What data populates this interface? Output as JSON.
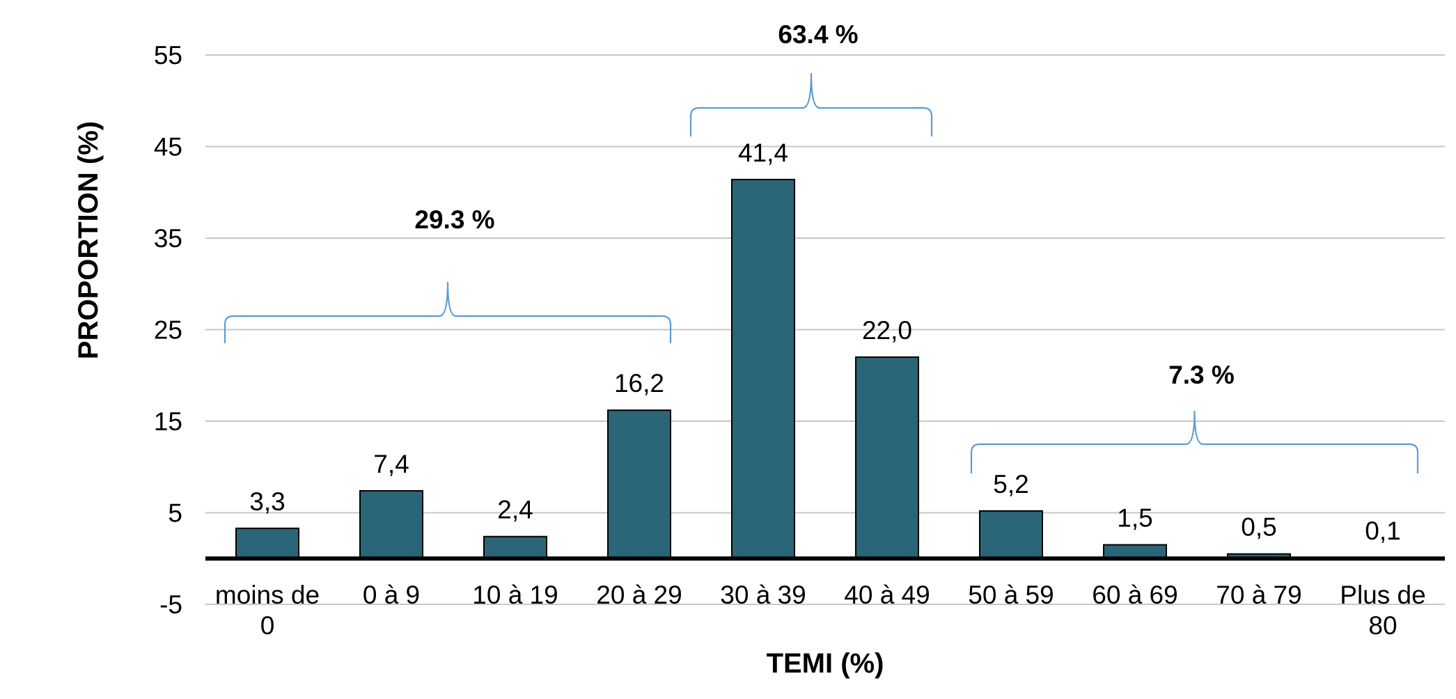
{
  "chart_data": {
    "type": "bar",
    "categories": [
      [
        "moins de",
        "0"
      ],
      [
        "0 à 9"
      ],
      [
        "10 à 19"
      ],
      [
        "20 à 29"
      ],
      [
        "30 à 39"
      ],
      [
        "40 à 49"
      ],
      [
        "50 à 59"
      ],
      [
        "60 à 69"
      ],
      [
        "70 à 79"
      ],
      [
        "Plus de",
        "80"
      ]
    ],
    "values": [
      3.3,
      7.4,
      2.4,
      16.2,
      41.4,
      22.0,
      5.2,
      1.5,
      0.5,
      0.1
    ],
    "data_labels": [
      "3,3",
      "7,4",
      "2,4",
      "16,2",
      "41,4",
      "22,0",
      "5,2",
      "1,5",
      "0,5",
      "0,1"
    ],
    "xlabel": "TEMI (%)",
    "ylabel": "PROPORTION (%)",
    "ylim": [
      -5,
      55
    ],
    "yticks": [
      -5,
      5,
      15,
      25,
      35,
      45,
      55
    ],
    "grid": true,
    "legend": "none",
    "groups": [
      {
        "label": "29.3 %",
        "from": 0,
        "to": 3
      },
      {
        "label": "63.4 %",
        "from": 4,
        "to": 5
      },
      {
        "label": "7.3 %",
        "from": 6,
        "to": 9
      }
    ],
    "colors": {
      "bar": "#2a6678",
      "bar_border": "#000000",
      "grid": "#c8c8c8",
      "baseline": "#000000",
      "brace": "#5b9bd5"
    }
  }
}
